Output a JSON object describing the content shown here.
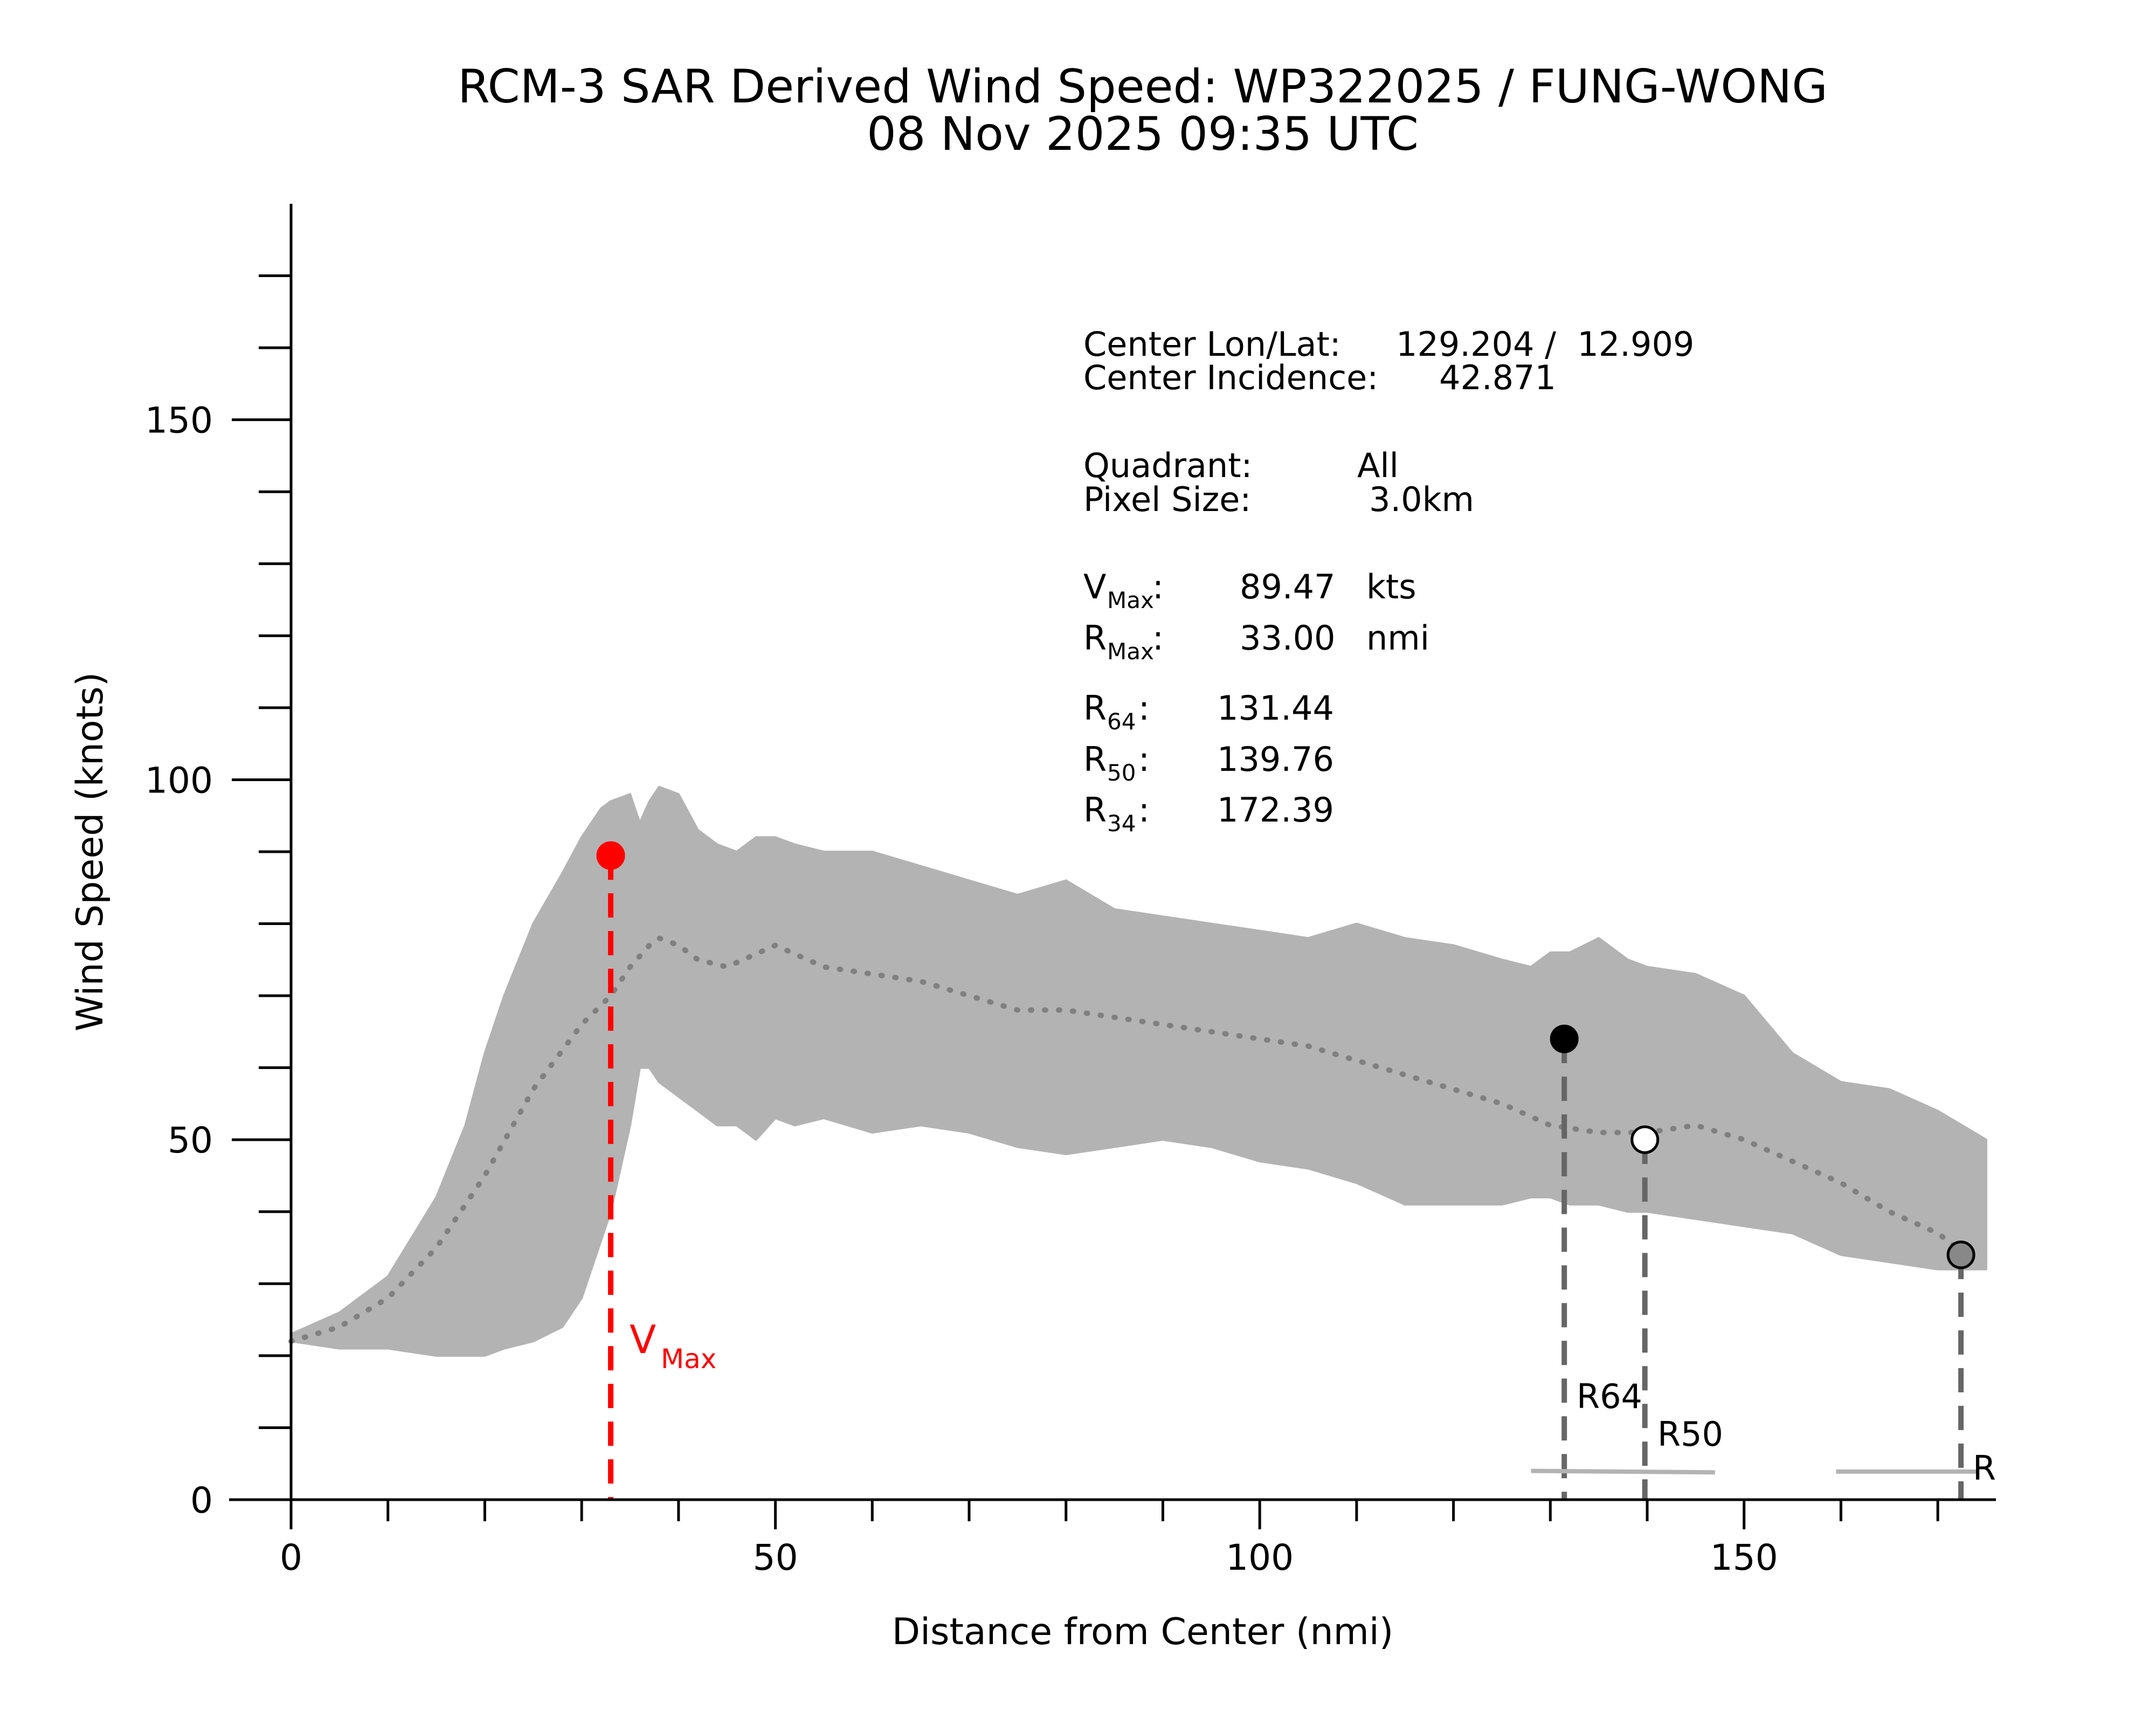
{
  "chart_data": {
    "type": "scatter",
    "title": "RCM-3 SAR Derived Wind Speed: WP322025 / FUNG-WONG",
    "subtitle": "08 Nov 2025 09:35 UTC",
    "xlabel": "Distance from Center (nmi)",
    "ylabel": "Wind Speed (knots)",
    "xlim": [
      0,
      176
    ],
    "ylim": [
      0,
      180
    ],
    "x_ticks": [
      0,
      50,
      100,
      150
    ],
    "y_ticks": [
      0,
      50,
      100,
      150
    ],
    "grid": false,
    "info": {
      "center_lonlat_label": "Center Lon/Lat:",
      "center_lonlat_value": "129.204 /  12.909",
      "center_incidence_label": "Center Incidence:",
      "center_incidence_value": "42.871",
      "quadrant_label": "Quadrant:",
      "quadrant_value": "All",
      "pixel_size_label": "Pixel Size:",
      "pixel_size_value": "3.0km",
      "vmax_letter": "V",
      "vmax_sub": "Max",
      "vmax_value": "89.47",
      "vmax_unit": "kts",
      "rmax_letter": "R",
      "rmax_sub": "Max",
      "rmax_value": "33.00",
      "rmax_unit": "nmi",
      "r64_letter": "R",
      "r64_sub": "64",
      "r64_value": "131.44",
      "r50_letter": "R",
      "r50_sub": "50",
      "r50_value": "139.76",
      "r34_letter": "R",
      "r34_sub": "34",
      "r34_value": "172.39"
    },
    "markers": [
      {
        "name": "vmax-point",
        "x": 33.0,
        "y": 89.47,
        "fill": "#ff0000",
        "stroke": "#ff0000"
      },
      {
        "name": "r64-point",
        "x": 131.44,
        "y": 64,
        "fill": "#000000",
        "stroke": "#000000"
      },
      {
        "name": "r50-point",
        "x": 139.76,
        "y": 50,
        "fill": "#ffffff",
        "stroke": "#000000"
      },
      {
        "name": "r34-point",
        "x": 172.39,
        "y": 34,
        "fill": "#888888",
        "stroke": "#000000"
      }
    ],
    "radius_tags": {
      "vmax_letter": "V",
      "vmax_sub": "Max",
      "r64": "R64",
      "r50": "R50",
      "r34": "R"
    },
    "envelope": {
      "x": [
        0,
        5,
        10,
        15,
        18,
        20,
        22,
        25,
        28,
        30,
        32,
        33,
        35,
        36,
        37,
        38,
        40,
        42,
        44,
        46,
        48,
        50,
        52,
        55,
        60,
        65,
        70,
        75,
        80,
        85,
        90,
        95,
        100,
        105,
        110,
        115,
        120,
        125,
        128,
        130,
        132,
        135,
        138,
        140,
        145,
        150,
        155,
        160,
        165,
        170,
        175
      ],
      "upper": [
        23,
        26,
        31,
        42,
        52,
        62,
        70,
        80,
        87,
        92,
        96,
        97,
        98,
        94,
        97,
        99,
        98,
        93,
        91,
        90,
        92,
        92,
        91,
        90,
        90,
        88,
        86,
        84,
        86,
        82,
        81,
        80,
        79,
        78,
        80,
        78,
        77,
        75,
        74,
        76,
        76,
        78,
        75,
        74,
        73,
        70,
        62,
        58,
        57,
        54,
        50
      ],
      "lower": [
        22,
        21,
        21,
        20,
        20,
        20,
        21,
        22,
        24,
        28,
        36,
        40,
        52,
        60,
        60,
        58,
        56,
        54,
        52,
        52,
        50,
        53,
        52,
        53,
        51,
        52,
        51,
        49,
        48,
        49,
        50,
        49,
        47,
        46,
        44,
        41,
        41,
        41,
        42,
        42,
        41,
        41,
        40,
        40,
        39,
        38,
        37,
        34,
        33,
        32,
        32
      ]
    },
    "series": [
      {
        "name": "Mean wind profile (dotted)",
        "x": [
          0,
          5,
          10,
          15,
          20,
          25,
          30,
          33,
          35,
          37,
          38,
          40,
          42,
          45,
          50,
          55,
          60,
          65,
          70,
          75,
          80,
          85,
          90,
          95,
          100,
          105,
          110,
          115,
          120,
          125,
          130,
          135,
          140,
          145,
          150,
          155,
          160,
          165,
          170,
          173
        ],
        "y": [
          22,
          24,
          28,
          35,
          45,
          57,
          66,
          70,
          74,
          77,
          78,
          77,
          75,
          74,
          77,
          74,
          73,
          72,
          70,
          68,
          68,
          67,
          66,
          65,
          64,
          63,
          61,
          59,
          57,
          55,
          52,
          51,
          51,
          52,
          50,
          47,
          44,
          40,
          37,
          34
        ]
      }
    ]
  }
}
